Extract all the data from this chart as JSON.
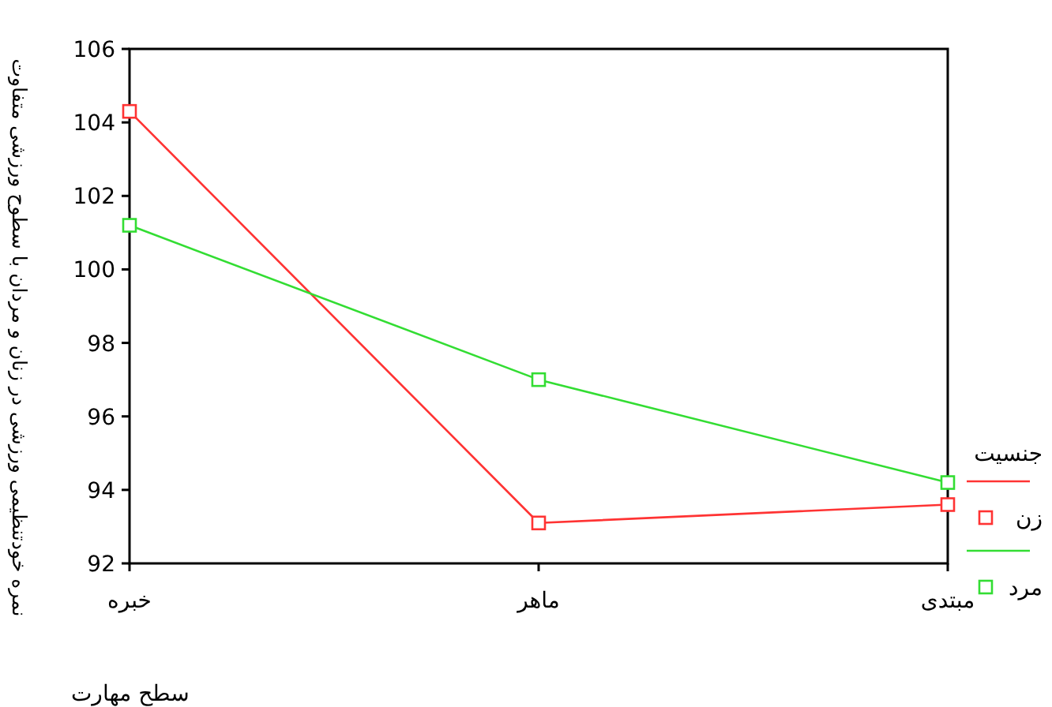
{
  "chart_data": {
    "type": "line",
    "xlabel": "سطح مهارت",
    "ylabel": "نمره خودتنظیمی ورزشی در زنان و مردان با سطوح ورزشی متفاوت",
    "legend_title": "جنسیت",
    "categories": [
      "خبره",
      "ماهر",
      "مبتدی"
    ],
    "series": [
      {
        "name": "زن",
        "color": "#ff3333",
        "values": [
          104.3,
          93.1,
          93.6
        ]
      },
      {
        "name": "مرد",
        "color": "#33dd33",
        "values": [
          101.2,
          97.0,
          94.2
        ]
      }
    ],
    "ylim": [
      92,
      106
    ],
    "yticks": [
      92,
      94,
      96,
      98,
      100,
      102,
      104,
      106
    ],
    "marker": "square",
    "legend": "right",
    "grid": false
  }
}
